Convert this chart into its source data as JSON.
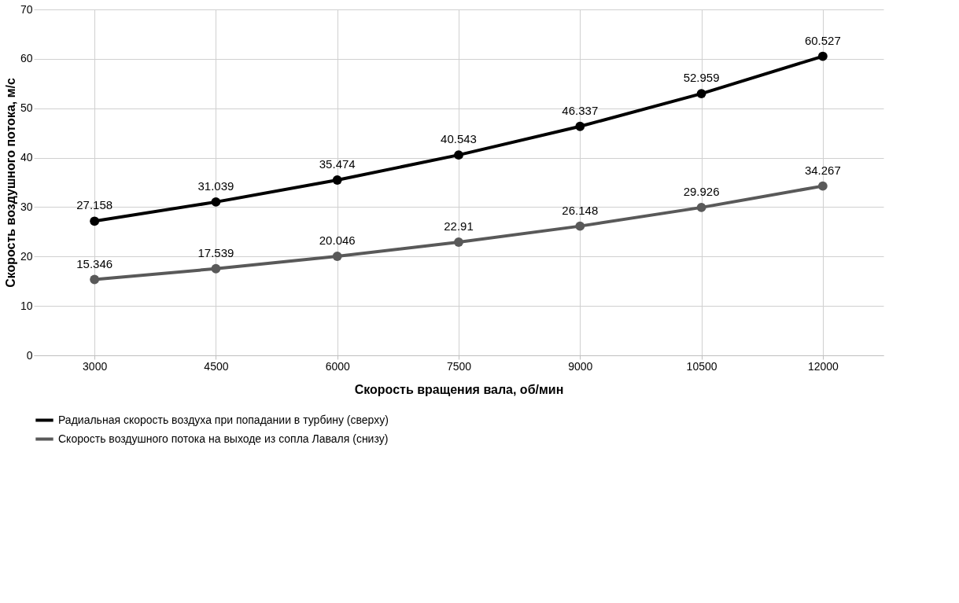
{
  "chart_data": {
    "type": "line",
    "xlabel": "Скорость вращения вала, об/мин",
    "ylabel": "Скорость воздушного потока, м/с",
    "categories": [
      "3000",
      "4500",
      "6000",
      "7500",
      "9000",
      "10500",
      "12000"
    ],
    "series": [
      {
        "name": "Радиальная скорость воздуха при попадании в турбину (сверху)",
        "color": "#000000",
        "values": [
          27.158,
          31.039,
          35.474,
          40.543,
          46.337,
          52.959,
          60.527
        ]
      },
      {
        "name": "Скорость воздушного потока на выходе из сопла Лаваля (снизу)",
        "color": "#595959",
        "values": [
          15.346,
          17.539,
          20.046,
          22.91,
          26.148,
          29.926,
          34.267
        ]
      }
    ],
    "ylim": [
      0,
      70
    ],
    "yticks": [
      0,
      10,
      20,
      30,
      40,
      50,
      60,
      70
    ],
    "grid": true,
    "legend": "bottom",
    "marker": "circle",
    "line_style": "solid",
    "data_labels": true
  }
}
